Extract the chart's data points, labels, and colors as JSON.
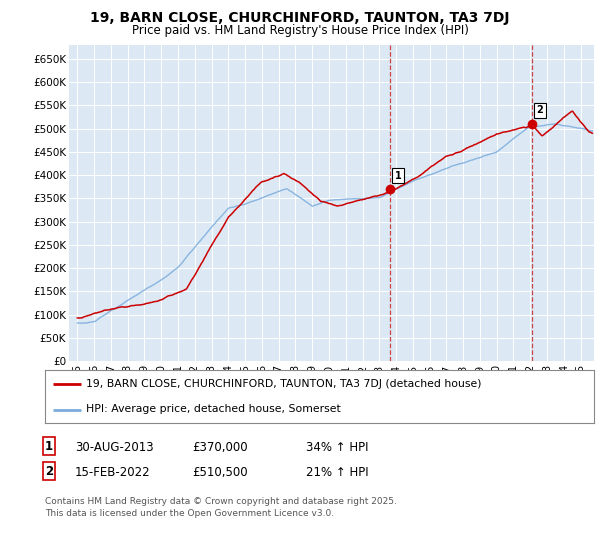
{
  "title": "19, BARN CLOSE, CHURCHINFORD, TAUNTON, TA3 7DJ",
  "subtitle": "Price paid vs. HM Land Registry's House Price Index (HPI)",
  "plot_bg_color": "#dce9f5",
  "ylabel_ticks": [
    "£0",
    "£50K",
    "£100K",
    "£150K",
    "£200K",
    "£250K",
    "£300K",
    "£350K",
    "£400K",
    "£450K",
    "£500K",
    "£550K",
    "£600K",
    "£650K"
  ],
  "ytick_vals": [
    0,
    50000,
    100000,
    150000,
    200000,
    250000,
    300000,
    350000,
    400000,
    450000,
    500000,
    550000,
    600000,
    650000
  ],
  "ylim": [
    0,
    680000
  ],
  "xlim_start": 1994.5,
  "xlim_end": 2025.8,
  "red_line_color": "#cc0000",
  "blue_line_color": "#7aabdc",
  "marker1_date": 2013.667,
  "marker1_value": 370000,
  "marker2_date": 2022.125,
  "marker2_value": 510500,
  "vline1_x": 2013.667,
  "vline2_x": 2022.125,
  "legend_red_label": "19, BARN CLOSE, CHURCHINFORD, TAUNTON, TA3 7DJ (detached house)",
  "legend_blue_label": "HPI: Average price, detached house, Somerset",
  "footer": "Contains HM Land Registry data © Crown copyright and database right 2025.\nThis data is licensed under the Open Government Licence v3.0.",
  "xtick_years": [
    1995,
    1996,
    1997,
    1998,
    1999,
    2000,
    2001,
    2002,
    2003,
    2004,
    2005,
    2006,
    2007,
    2008,
    2009,
    2010,
    2011,
    2012,
    2013,
    2014,
    2015,
    2016,
    2017,
    2018,
    2019,
    2020,
    2021,
    2022,
    2023,
    2024,
    2025
  ],
  "xtick_labels": [
    "95",
    "96",
    "97",
    "98",
    "99",
    "00",
    "01",
    "02",
    "03",
    "04",
    "05",
    "06",
    "07",
    "08",
    "09",
    "10",
    "11",
    "12",
    "13",
    "14",
    "15",
    "16",
    "17",
    "18",
    "19",
    "20",
    "21",
    "22",
    "23",
    "24",
    "25"
  ]
}
